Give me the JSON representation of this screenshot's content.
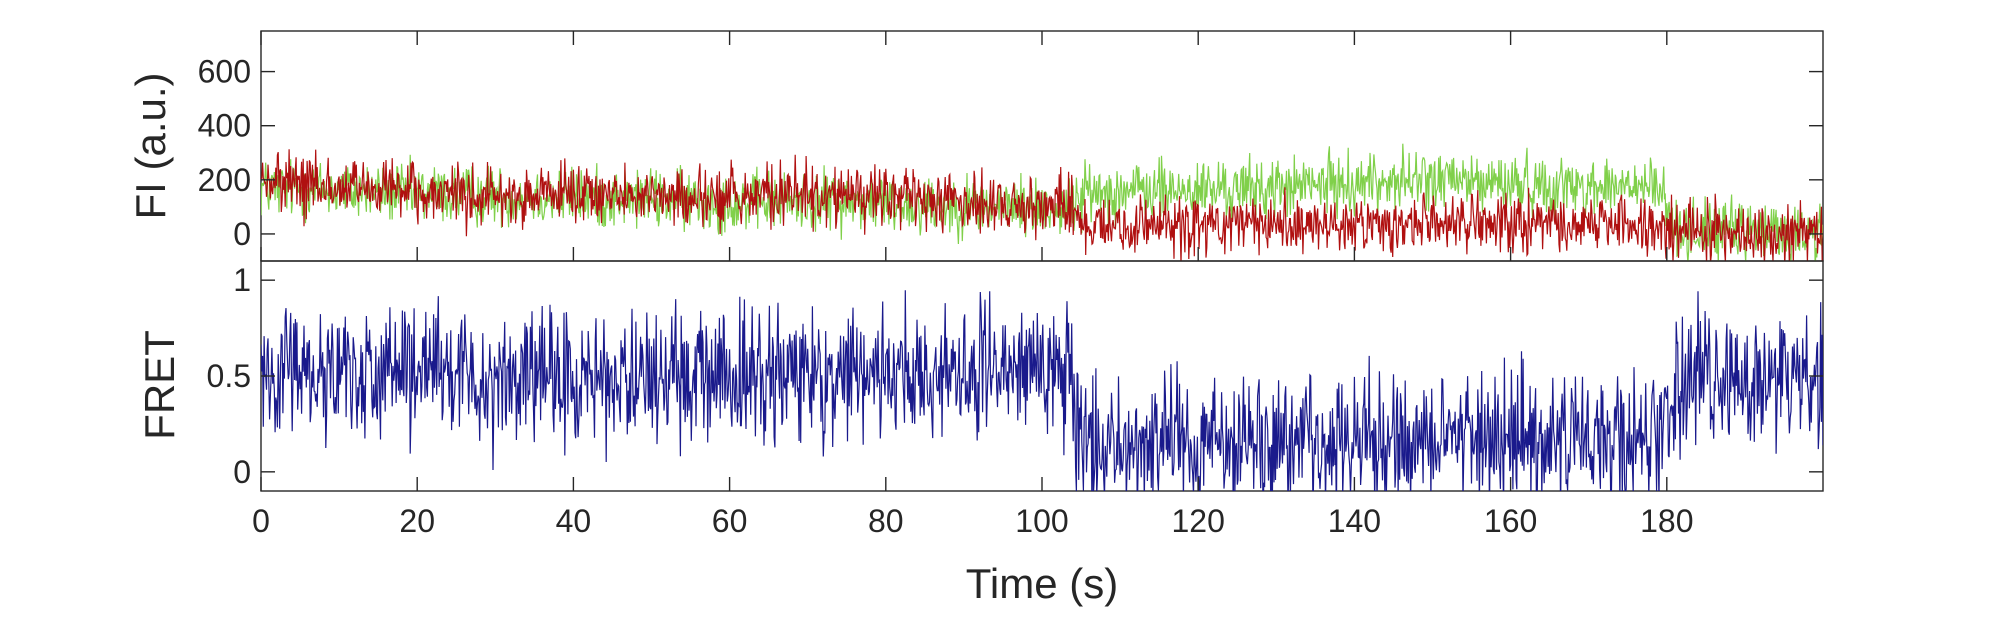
{
  "chart_data": [
    {
      "type": "line",
      "panel": "top",
      "ylabel": "FI (a.u.)",
      "xlim": [
        0,
        200
      ],
      "ylim": [
        -100,
        750
      ],
      "yticks": [
        "0",
        "200",
        "400",
        "600"
      ],
      "ytick_values": [
        0,
        200,
        400,
        600
      ],
      "colors": {
        "donor": "#80d04a",
        "acceptor": "#b01010"
      },
      "series": [
        {
          "key": "donor",
          "x": [
            0,
            10,
            20,
            30,
            40,
            50,
            60,
            70,
            80,
            90,
            100,
            104,
            105,
            110,
            120,
            130,
            140,
            150,
            160,
            170,
            179,
            181,
            190,
            200
          ],
          "values": [
            170,
            160,
            150,
            140,
            135,
            130,
            120,
            120,
            115,
            105,
            100,
            100,
            150,
            160,
            160,
            170,
            190,
            200,
            185,
            175,
            170,
            20,
            10,
            0
          ],
          "noise": 55
        },
        {
          "key": "acceptor",
          "x": [
            0,
            10,
            20,
            30,
            40,
            50,
            60,
            70,
            80,
            90,
            100,
            104,
            105,
            110,
            120,
            130,
            140,
            150,
            160,
            170,
            179,
            181,
            190,
            200
          ],
          "values": [
            190,
            170,
            150,
            140,
            140,
            140,
            140,
            150,
            130,
            120,
            110,
            110,
            20,
            25,
            30,
            30,
            40,
            40,
            35,
            35,
            30,
            10,
            0,
            -10
          ],
          "noise": 55
        }
      ]
    },
    {
      "type": "line",
      "panel": "bottom",
      "ylabel": "FRET",
      "xlabel": "Time (s)",
      "xlim": [
        0,
        200
      ],
      "ylim": [
        -0.1,
        1.1
      ],
      "yticks": [
        "0",
        "0.5",
        "1"
      ],
      "ytick_values": [
        0,
        0.5,
        1
      ],
      "xticks": [
        "0",
        "20",
        "40",
        "60",
        "80",
        "100",
        "120",
        "140",
        "160",
        "180"
      ],
      "xtick_values": [
        0,
        20,
        40,
        60,
        80,
        100,
        120,
        140,
        160,
        180
      ],
      "colors": {
        "fret": "#1a1a8c"
      },
      "series": [
        {
          "key": "fret",
          "x": [
            0,
            10,
            20,
            30,
            40,
            50,
            60,
            70,
            80,
            90,
            100,
            104,
            105,
            120,
            140,
            160,
            179,
            181,
            200
          ],
          "values": [
            0.55,
            0.52,
            0.5,
            0.48,
            0.47,
            0.48,
            0.5,
            0.5,
            0.52,
            0.53,
            0.52,
            0.5,
            0.15,
            0.15,
            0.17,
            0.17,
            0.17,
            0.5,
            0.5
          ],
          "noise": 0.17
        }
      ]
    }
  ]
}
